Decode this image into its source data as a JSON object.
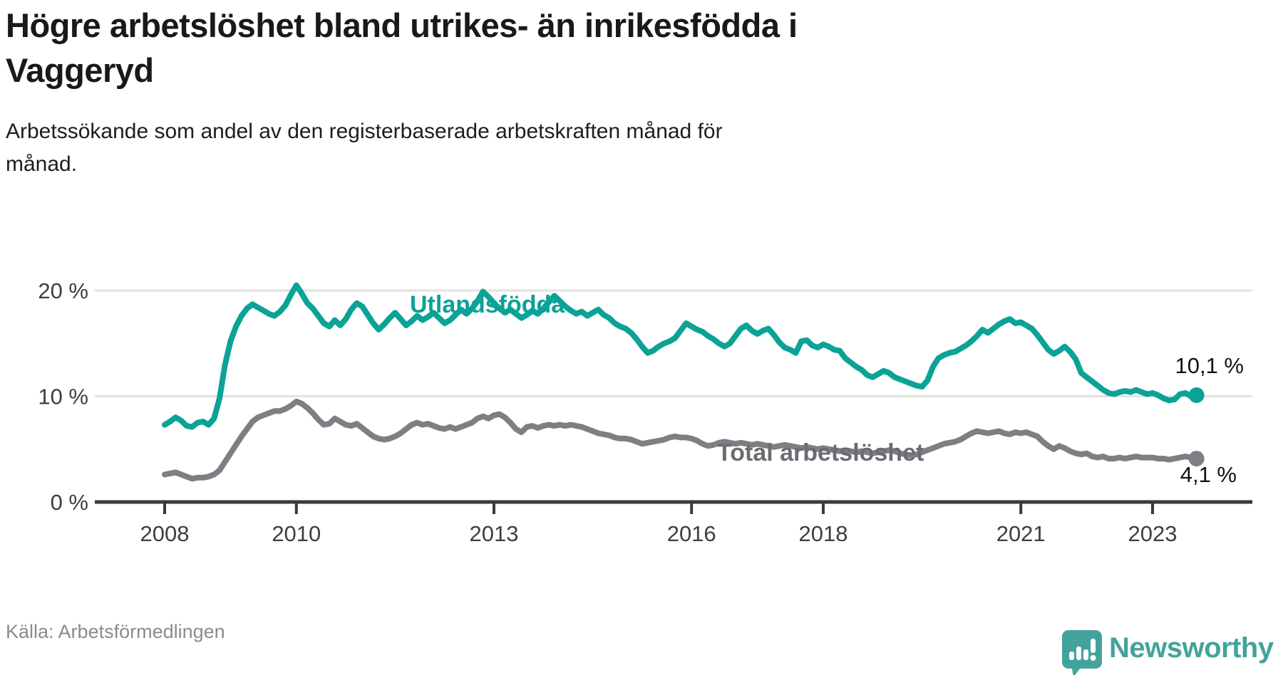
{
  "header": {
    "title_lines": [
      "Högre arbetslöshet bland utrikes- än inrikesfödda i",
      "Vaggeryd"
    ],
    "subtitle_lines": [
      "Arbetssökande som andel av den registerbaserade arbetskraften månad för",
      "månad."
    ]
  },
  "chart_data": {
    "type": "line",
    "unit": "%",
    "frequency": "monthly",
    "x_start": "2008-01",
    "x_end": "2023-09",
    "ylim": [
      0,
      22
    ],
    "grid": "horizontal",
    "y_ticks": [
      {
        "value": 0,
        "label": "0 %"
      },
      {
        "value": 10,
        "label": "10 %"
      },
      {
        "value": 20,
        "label": "20 %"
      }
    ],
    "x_ticks": [
      {
        "year": 2008,
        "label": "2008"
      },
      {
        "year": 2010,
        "label": "2010"
      },
      {
        "year": 2013,
        "label": "2013"
      },
      {
        "year": 2016,
        "label": "2016"
      },
      {
        "year": 2018,
        "label": "2018"
      },
      {
        "year": 2021,
        "label": "2021"
      },
      {
        "year": 2023,
        "label": "2023"
      }
    ],
    "series": [
      {
        "name": "Utlandsfödda",
        "color": "#0aa396",
        "label_color": "#0aa396",
        "end_value": 10.1,
        "end_label": "10,1 %",
        "values": [
          7.3,
          7.6,
          8.0,
          7.7,
          7.2,
          7.1,
          7.5,
          7.6,
          7.3,
          7.9,
          9.8,
          13.0,
          15.2,
          16.6,
          17.6,
          18.3,
          18.7,
          18.4,
          18.1,
          17.8,
          17.6,
          18.0,
          18.6,
          19.6,
          20.5,
          19.7,
          18.8,
          18.3,
          17.6,
          16.9,
          16.6,
          17.2,
          16.7,
          17.3,
          18.2,
          18.8,
          18.5,
          17.7,
          16.9,
          16.3,
          16.8,
          17.4,
          17.9,
          17.3,
          16.7,
          17.1,
          17.6,
          17.2,
          17.5,
          17.9,
          17.4,
          16.9,
          17.2,
          17.7,
          18.2,
          17.8,
          18.3,
          19.0,
          19.9,
          19.4,
          18.8,
          18.3,
          17.9,
          18.2,
          17.8,
          17.4,
          17.7,
          18.1,
          17.8,
          18.3,
          18.9,
          19.5,
          19.0,
          18.5,
          18.1,
          17.8,
          18.0,
          17.6,
          17.9,
          18.2,
          17.7,
          17.4,
          16.9,
          16.6,
          16.4,
          16.0,
          15.4,
          14.7,
          14.1,
          14.3,
          14.7,
          15.0,
          15.2,
          15.5,
          16.2,
          16.9,
          16.6,
          16.3,
          16.1,
          15.7,
          15.4,
          15.0,
          14.7,
          15.0,
          15.7,
          16.4,
          16.7,
          16.2,
          15.9,
          16.2,
          16.4,
          15.8,
          15.1,
          14.6,
          14.4,
          14.1,
          15.2,
          15.3,
          14.8,
          14.6,
          14.9,
          14.7,
          14.4,
          14.3,
          13.6,
          13.2,
          12.8,
          12.5,
          12.0,
          11.8,
          12.1,
          12.4,
          12.2,
          11.8,
          11.6,
          11.4,
          11.2,
          11.0,
          10.9,
          11.5,
          12.8,
          13.6,
          13.9,
          14.1,
          14.2,
          14.5,
          14.8,
          15.2,
          15.7,
          16.3,
          16.0,
          16.4,
          16.8,
          17.1,
          17.3,
          16.9,
          17.0,
          16.7,
          16.4,
          15.8,
          15.1,
          14.4,
          14.0,
          14.3,
          14.7,
          14.2,
          13.5,
          12.2,
          11.8,
          11.4,
          11.0,
          10.6,
          10.3,
          10.2,
          10.4,
          10.5,
          10.4,
          10.6,
          10.4,
          10.2,
          10.3,
          10.1,
          9.8,
          9.6,
          9.7,
          10.2,
          10.3,
          10.0,
          10.1
        ]
      },
      {
        "name": "Total arbetslöshet",
        "color": "#7f7e84",
        "label_color": "#6c6b71",
        "end_value": 4.1,
        "end_label": "4,1 %",
        "values": [
          2.6,
          2.7,
          2.8,
          2.6,
          2.4,
          2.2,
          2.3,
          2.3,
          2.4,
          2.6,
          3.0,
          3.8,
          4.6,
          5.4,
          6.2,
          6.9,
          7.6,
          8.0,
          8.2,
          8.4,
          8.6,
          8.6,
          8.8,
          9.1,
          9.5,
          9.3,
          8.9,
          8.4,
          7.8,
          7.3,
          7.4,
          7.9,
          7.6,
          7.3,
          7.2,
          7.4,
          7.0,
          6.6,
          6.2,
          6.0,
          5.9,
          6.0,
          6.2,
          6.5,
          6.9,
          7.3,
          7.5,
          7.3,
          7.4,
          7.2,
          7.0,
          6.9,
          7.1,
          6.9,
          7.1,
          7.3,
          7.5,
          7.9,
          8.1,
          7.9,
          8.2,
          8.3,
          8.0,
          7.5,
          6.9,
          6.6,
          7.1,
          7.2,
          7.0,
          7.2,
          7.3,
          7.2,
          7.3,
          7.2,
          7.3,
          7.2,
          7.1,
          6.9,
          6.7,
          6.5,
          6.4,
          6.3,
          6.1,
          6.0,
          6.0,
          5.9,
          5.7,
          5.5,
          5.6,
          5.7,
          5.8,
          5.9,
          6.1,
          6.2,
          6.1,
          6.1,
          6.0,
          5.8,
          5.5,
          5.3,
          5.4,
          5.6,
          5.7,
          5.6,
          5.5,
          5.6,
          5.5,
          5.4,
          5.5,
          5.4,
          5.3,
          5.2,
          5.3,
          5.4,
          5.3,
          5.2,
          5.1,
          5.2,
          5.1,
          5.0,
          5.1,
          5.0,
          4.9,
          4.8,
          4.9,
          4.8,
          4.7,
          4.8,
          4.7,
          4.6,
          4.7,
          4.8,
          4.9,
          4.8,
          4.6,
          4.5,
          4.4,
          4.5,
          4.7,
          4.9,
          5.1,
          5.3,
          5.5,
          5.6,
          5.7,
          5.9,
          6.2,
          6.5,
          6.7,
          6.6,
          6.5,
          6.6,
          6.7,
          6.5,
          6.4,
          6.6,
          6.5,
          6.6,
          6.4,
          6.2,
          5.7,
          5.3,
          5.0,
          5.3,
          5.1,
          4.8,
          4.6,
          4.5,
          4.6,
          4.3,
          4.2,
          4.3,
          4.1,
          4.1,
          4.2,
          4.1,
          4.2,
          4.3,
          4.2,
          4.2,
          4.2,
          4.1,
          4.1,
          4.0,
          4.1,
          4.2,
          4.3,
          4.2,
          4.1
        ]
      }
    ]
  },
  "footer": {
    "source": "Källa: Arbetsförmedlingen",
    "brand": "Newsworthy"
  },
  "colors": {
    "accent_teal": "#0aa396",
    "line_gray": "#7f7e84",
    "gridline": "#e2e2e2",
    "axis": "#3a3a3a",
    "axis_text": "#3e3e3e",
    "brand_teal": "#43a39c"
  }
}
